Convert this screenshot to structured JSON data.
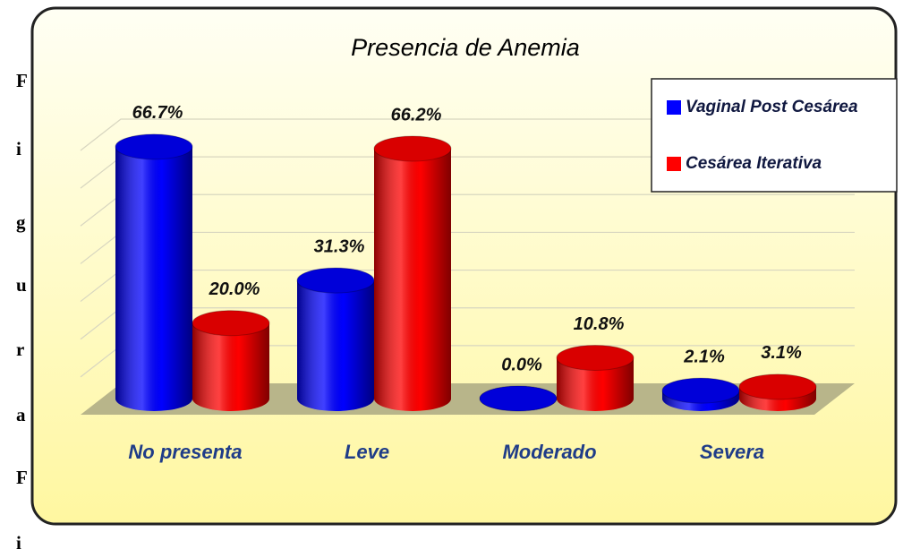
{
  "side_text": [
    "F",
    "i",
    "g",
    "u",
    "r",
    "a",
    "F",
    "i"
  ],
  "chart_data": {
    "type": "bar3d",
    "title": "Presencia de Anemia",
    "categories": [
      "No presenta",
      "Leve",
      "Moderado",
      "Severa"
    ],
    "series": [
      {
        "name": "Vaginal Post Cesárea",
        "color": "#0000ff",
        "values": [
          66.7,
          31.3,
          0.0,
          2.1
        ],
        "value_labels": [
          "66.7%",
          "31.3%",
          "0.0%",
          "2.1%"
        ]
      },
      {
        "name": "Cesárea Iterativa",
        "color": "#ff0000",
        "values": [
          20.0,
          66.2,
          10.8,
          3.1
        ],
        "value_labels": [
          "20.0%",
          "66.2%",
          "10.8%",
          "3.1%"
        ]
      }
    ],
    "ylim": [
      0,
      70
    ],
    "yticks": [
      0,
      10,
      20,
      30,
      40,
      50,
      60,
      70
    ],
    "grid": true,
    "legend": "upper right"
  }
}
